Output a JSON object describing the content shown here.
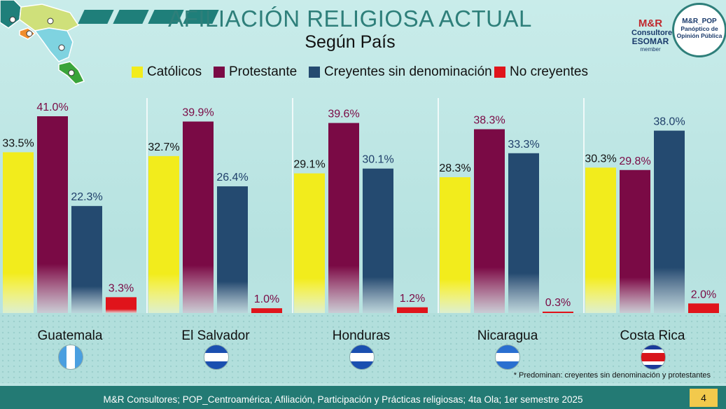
{
  "header": {
    "title": "AFILIACIÓN RELIGIOSA ACTUAL",
    "subtitle": "Según País"
  },
  "logos": {
    "mr_brand": "M&R",
    "mr_sub": "Consultores",
    "mr_esomar": "ESOMAR",
    "mr_member": "member",
    "pop_brand": "M&R_POP",
    "pop_sub": "Panóptico de Opinión Pública"
  },
  "chart_data": {
    "type": "bar",
    "title": "AFILIACIÓN RELIGIOSA ACTUAL",
    "subtitle": "Según País",
    "categories": [
      "Guatemala",
      "El Salvador",
      "Honduras",
      "Nicaragua",
      "Costa Rica"
    ],
    "series": [
      {
        "name": "Católicos",
        "color": "#f2ec1c",
        "label_color": "#111111",
        "values": [
          33.5,
          32.7,
          29.1,
          28.3,
          30.3
        ]
      },
      {
        "name": "Protestante",
        "color": "#7a0a45",
        "label_color": "#7a0a45",
        "values": [
          41.0,
          39.9,
          39.6,
          38.3,
          29.8
        ]
      },
      {
        "name": "Creyentes sin denominación",
        "color": "#244a70",
        "label_color": "#1f3f6a",
        "values": [
          22.3,
          26.4,
          30.1,
          33.3,
          38.0
        ]
      },
      {
        "name": "No creyentes",
        "color": "#e0141b",
        "label_color": "#7a0a45",
        "values": [
          3.3,
          1.0,
          1.2,
          0.3,
          2.0
        ]
      }
    ],
    "value_format": "percent_1dp",
    "ylim": [
      0,
      41
    ],
    "legend_position": "top",
    "grid": false
  },
  "countries": [
    {
      "name": "Guatemala",
      "flag": "guatemala-flag"
    },
    {
      "name": "El Salvador",
      "flag": "el-salvador-flag"
    },
    {
      "name": "Honduras",
      "flag": "honduras-flag"
    },
    {
      "name": "Nicaragua",
      "flag": "nicaragua-flag"
    },
    {
      "name": "Costa Rica",
      "flag": "costa-rica-flag"
    }
  ],
  "note": "* Predominan: creyentes sin denominación  y protestantes",
  "footer": {
    "source": "M&R Consultores; POP_Centroamérica; Afiliación, Participación y Prácticas religiosas; 4ta Ola; 1er semestre 2025",
    "page": "4"
  }
}
